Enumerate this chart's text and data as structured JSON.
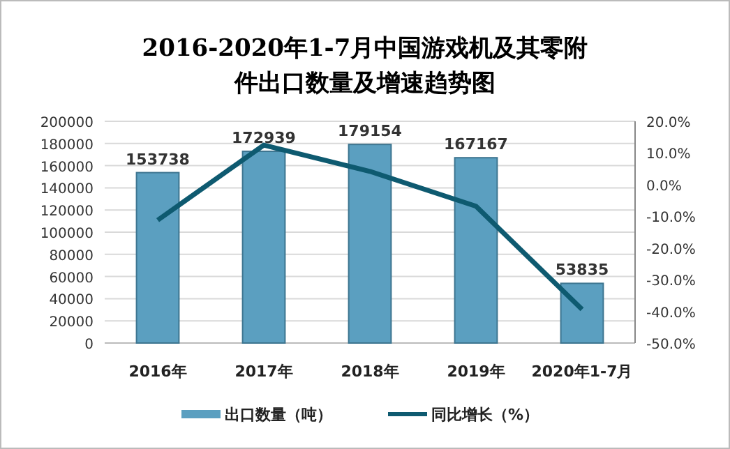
{
  "chart_data": {
    "type": "bar",
    "title": "2016-2020年1-7月中国游戏机及其零附件出口数量及增速趋势图",
    "categories": [
      "2016年",
      "2017年",
      "2018年",
      "2019年",
      "2020年1-7月"
    ],
    "series": [
      {
        "name": "出口数量（吨）",
        "color": "#5b9fc0",
        "values": [
          153738,
          172939,
          179154,
          167167,
          53835
        ],
        "value_labels": [
          "153738",
          "172939",
          "179154",
          "167167",
          "53835"
        ]
      },
      {
        "name": "同比增长（%）",
        "type": "line",
        "axis": "y2",
        "color": "#0e5a70",
        "values": [
          -11.2,
          12.5,
          4.2,
          -6.8,
          -39.4
        ]
      }
    ],
    "ylim": [
      0,
      200000
    ],
    "yticks": [
      0,
      20000,
      40000,
      60000,
      80000,
      100000,
      120000,
      140000,
      160000,
      180000,
      200000
    ],
    "y2lim": [
      -50,
      20
    ],
    "y2ticks": [
      {
        "value": -50,
        "label": "-50.0%"
      },
      {
        "value": -40,
        "label": "-40.0%"
      },
      {
        "value": -30,
        "label": "-30.0%"
      },
      {
        "value": -20,
        "label": "-20.0%"
      },
      {
        "value": -10,
        "label": "-10.0%"
      },
      {
        "value": 0,
        "label": "0.0%"
      },
      {
        "value": 10,
        "label": "10.0%"
      },
      {
        "value": 20,
        "label": "20.0%"
      }
    ],
    "grid": "y",
    "legend": "bottom"
  }
}
